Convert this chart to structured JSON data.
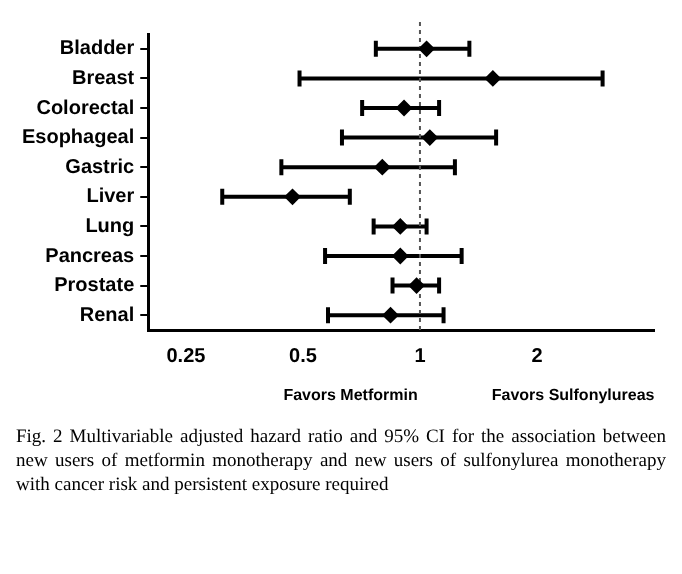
{
  "chart_data": {
    "type": "scatter",
    "orientation": "horizontal",
    "categories": [
      "Bladder",
      "Breast",
      "Colorectal",
      "Esophageal",
      "Gastric",
      "Liver",
      "Lung",
      "Pancreas",
      "Prostate",
      "Renal"
    ],
    "values": [
      1.04,
      1.54,
      0.91,
      1.06,
      0.8,
      0.47,
      0.89,
      0.89,
      0.98,
      0.84
    ],
    "errors": [
      [
        0.77,
        1.34
      ],
      [
        0.49,
        2.95
      ],
      [
        0.71,
        1.12
      ],
      [
        0.63,
        1.57
      ],
      [
        0.44,
        1.23
      ],
      [
        0.31,
        0.66
      ],
      [
        0.76,
        1.04
      ],
      [
        0.57,
        1.28
      ],
      [
        0.85,
        1.12
      ],
      [
        0.58,
        1.15
      ]
    ],
    "color": "#000000",
    "marker": "diamond",
    "log": "x",
    "grid": false,
    "xlim": [
      0.2,
      4
    ],
    "xticks": [
      0.25,
      0.5,
      1,
      2
    ],
    "ref_lines": [
      {
        "axis": "x",
        "value": 1,
        "color": "#555555",
        "line_style": "dotted"
      }
    ],
    "annotations": [
      "Favors Metformin",
      "Favors Sulfonylureas",
      "Fig. 2 Multivariable adjusted hazard ratio and 95% CI for the association between new users of metformin monotherapy and new users of sulfonylurea monotherapy with cancer risk and persistent exposure required"
    ]
  }
}
